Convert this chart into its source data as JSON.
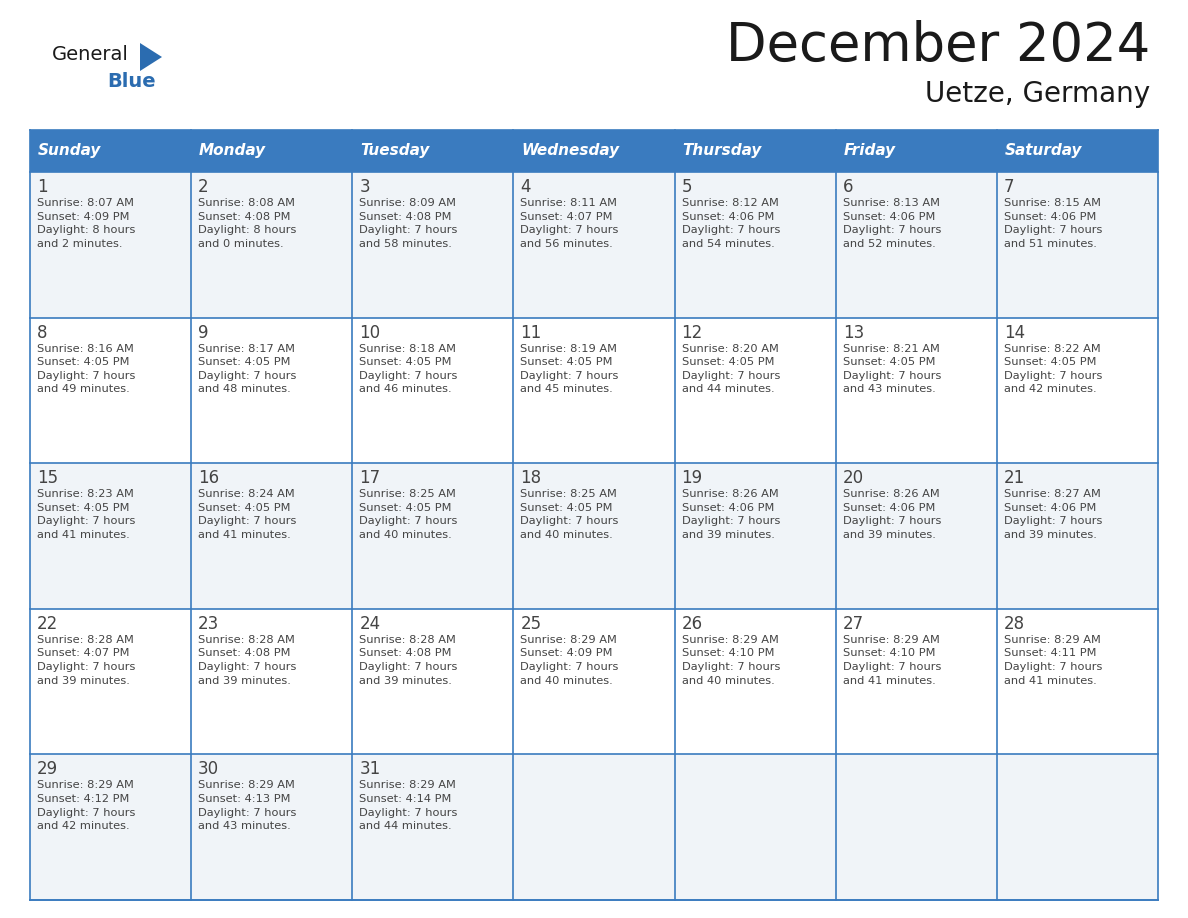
{
  "title": "December 2024",
  "subtitle": "Uetze, Germany",
  "header_color": "#3a7bbf",
  "header_text_color": "#ffffff",
  "days_of_week": [
    "Sunday",
    "Monday",
    "Tuesday",
    "Wednesday",
    "Thursday",
    "Friday",
    "Saturday"
  ],
  "cell_bg_color_odd": "#f0f4f8",
  "cell_bg_color_even": "#ffffff",
  "border_color": "#3a7bbf",
  "text_color": "#444444",
  "title_color": "#1a1a1a",
  "calendar_data": [
    [
      {
        "day": 1,
        "sunrise": "8:07 AM",
        "sunset": "4:09 PM",
        "daylight": "8 hours",
        "daylight2": "and 2 minutes."
      },
      {
        "day": 2,
        "sunrise": "8:08 AM",
        "sunset": "4:08 PM",
        "daylight": "8 hours",
        "daylight2": "and 0 minutes."
      },
      {
        "day": 3,
        "sunrise": "8:09 AM",
        "sunset": "4:08 PM",
        "daylight": "7 hours",
        "daylight2": "and 58 minutes."
      },
      {
        "day": 4,
        "sunrise": "8:11 AM",
        "sunset": "4:07 PM",
        "daylight": "7 hours",
        "daylight2": "and 56 minutes."
      },
      {
        "day": 5,
        "sunrise": "8:12 AM",
        "sunset": "4:06 PM",
        "daylight": "7 hours",
        "daylight2": "and 54 minutes."
      },
      {
        "day": 6,
        "sunrise": "8:13 AM",
        "sunset": "4:06 PM",
        "daylight": "7 hours",
        "daylight2": "and 52 minutes."
      },
      {
        "day": 7,
        "sunrise": "8:15 AM",
        "sunset": "4:06 PM",
        "daylight": "7 hours",
        "daylight2": "and 51 minutes."
      }
    ],
    [
      {
        "day": 8,
        "sunrise": "8:16 AM",
        "sunset": "4:05 PM",
        "daylight": "7 hours",
        "daylight2": "and 49 minutes."
      },
      {
        "day": 9,
        "sunrise": "8:17 AM",
        "sunset": "4:05 PM",
        "daylight": "7 hours",
        "daylight2": "and 48 minutes."
      },
      {
        "day": 10,
        "sunrise": "8:18 AM",
        "sunset": "4:05 PM",
        "daylight": "7 hours",
        "daylight2": "and 46 minutes."
      },
      {
        "day": 11,
        "sunrise": "8:19 AM",
        "sunset": "4:05 PM",
        "daylight": "7 hours",
        "daylight2": "and 45 minutes."
      },
      {
        "day": 12,
        "sunrise": "8:20 AM",
        "sunset": "4:05 PM",
        "daylight": "7 hours",
        "daylight2": "and 44 minutes."
      },
      {
        "day": 13,
        "sunrise": "8:21 AM",
        "sunset": "4:05 PM",
        "daylight": "7 hours",
        "daylight2": "and 43 minutes."
      },
      {
        "day": 14,
        "sunrise": "8:22 AM",
        "sunset": "4:05 PM",
        "daylight": "7 hours",
        "daylight2": "and 42 minutes."
      }
    ],
    [
      {
        "day": 15,
        "sunrise": "8:23 AM",
        "sunset": "4:05 PM",
        "daylight": "7 hours",
        "daylight2": "and 41 minutes."
      },
      {
        "day": 16,
        "sunrise": "8:24 AM",
        "sunset": "4:05 PM",
        "daylight": "7 hours",
        "daylight2": "and 41 minutes."
      },
      {
        "day": 17,
        "sunrise": "8:25 AM",
        "sunset": "4:05 PM",
        "daylight": "7 hours",
        "daylight2": "and 40 minutes."
      },
      {
        "day": 18,
        "sunrise": "8:25 AM",
        "sunset": "4:05 PM",
        "daylight": "7 hours",
        "daylight2": "and 40 minutes."
      },
      {
        "day": 19,
        "sunrise": "8:26 AM",
        "sunset": "4:06 PM",
        "daylight": "7 hours",
        "daylight2": "and 39 minutes."
      },
      {
        "day": 20,
        "sunrise": "8:26 AM",
        "sunset": "4:06 PM",
        "daylight": "7 hours",
        "daylight2": "and 39 minutes."
      },
      {
        "day": 21,
        "sunrise": "8:27 AM",
        "sunset": "4:06 PM",
        "daylight": "7 hours",
        "daylight2": "and 39 minutes."
      }
    ],
    [
      {
        "day": 22,
        "sunrise": "8:28 AM",
        "sunset": "4:07 PM",
        "daylight": "7 hours",
        "daylight2": "and 39 minutes."
      },
      {
        "day": 23,
        "sunrise": "8:28 AM",
        "sunset": "4:08 PM",
        "daylight": "7 hours",
        "daylight2": "and 39 minutes."
      },
      {
        "day": 24,
        "sunrise": "8:28 AM",
        "sunset": "4:08 PM",
        "daylight": "7 hours",
        "daylight2": "and 39 minutes."
      },
      {
        "day": 25,
        "sunrise": "8:29 AM",
        "sunset": "4:09 PM",
        "daylight": "7 hours",
        "daylight2": "and 40 minutes."
      },
      {
        "day": 26,
        "sunrise": "8:29 AM",
        "sunset": "4:10 PM",
        "daylight": "7 hours",
        "daylight2": "and 40 minutes."
      },
      {
        "day": 27,
        "sunrise": "8:29 AM",
        "sunset": "4:10 PM",
        "daylight": "7 hours",
        "daylight2": "and 41 minutes."
      },
      {
        "day": 28,
        "sunrise": "8:29 AM",
        "sunset": "4:11 PM",
        "daylight": "7 hours",
        "daylight2": "and 41 minutes."
      }
    ],
    [
      {
        "day": 29,
        "sunrise": "8:29 AM",
        "sunset": "4:12 PM",
        "daylight": "7 hours",
        "daylight2": "and 42 minutes."
      },
      {
        "day": 30,
        "sunrise": "8:29 AM",
        "sunset": "4:13 PM",
        "daylight": "7 hours",
        "daylight2": "and 43 minutes."
      },
      {
        "day": 31,
        "sunrise": "8:29 AM",
        "sunset": "4:14 PM",
        "daylight": "7 hours",
        "daylight2": "and 44 minutes."
      },
      null,
      null,
      null,
      null
    ]
  ],
  "logo_general_color": "#1a1a1a",
  "logo_blue_color": "#2b6cb0"
}
